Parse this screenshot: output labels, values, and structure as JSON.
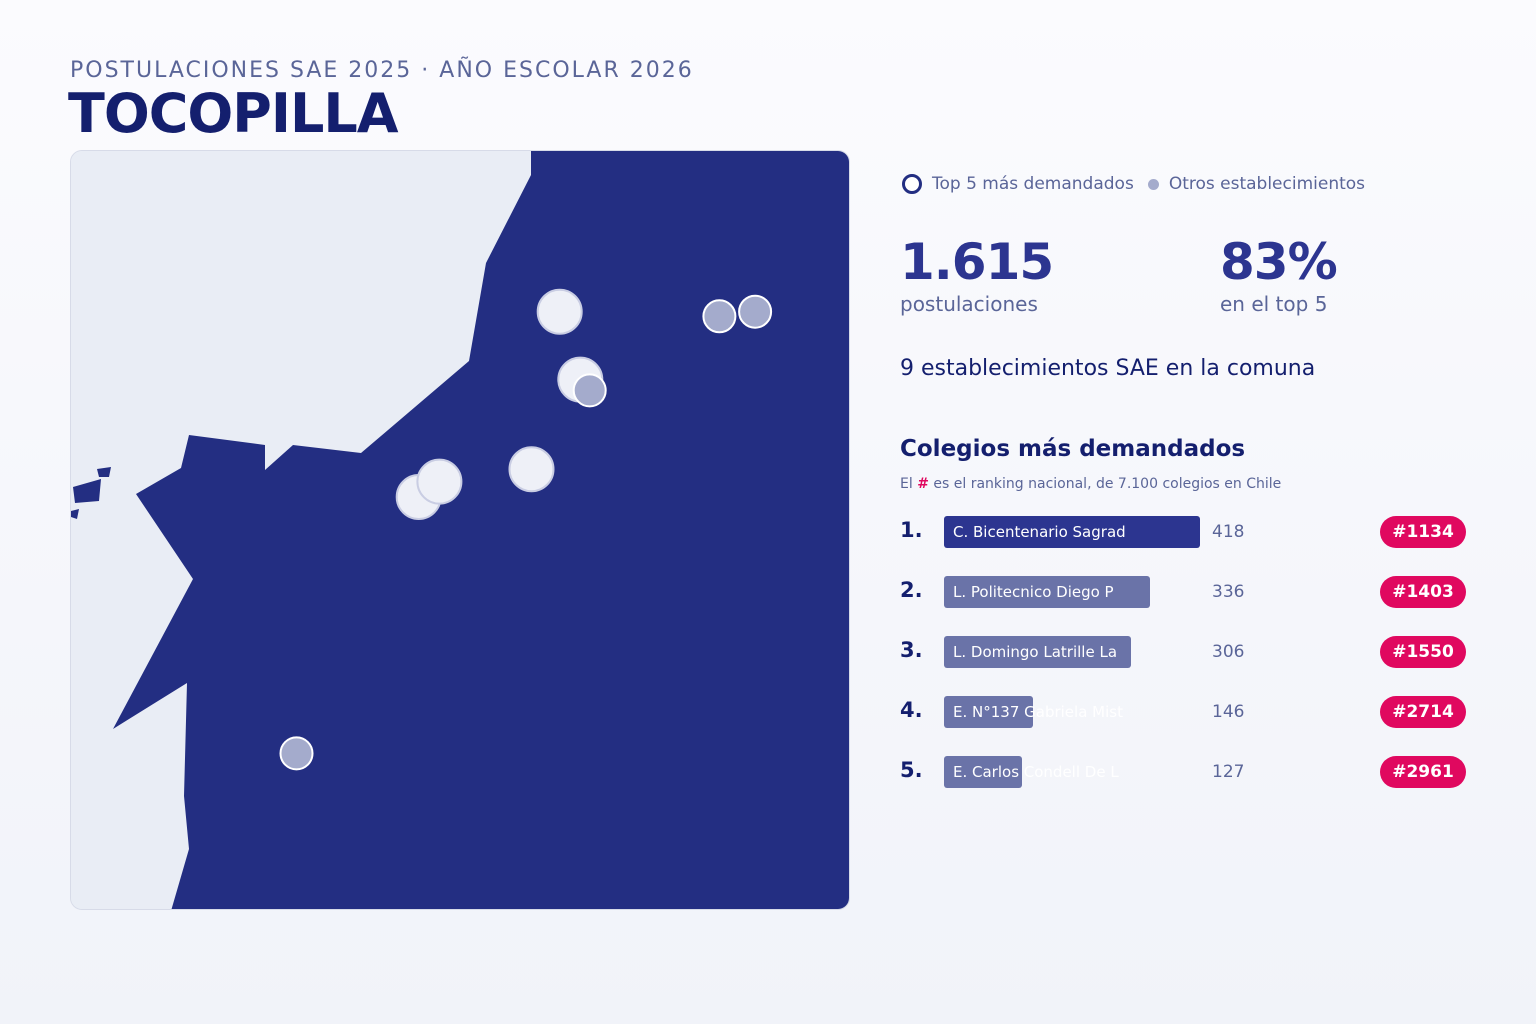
{
  "header": {
    "kicker": "POSTULACIONES SAE 2025 · AÑO ESCOLAR 2026",
    "title": "TOCOPILLA"
  },
  "colors": {
    "land": "#232e82",
    "sea": "#e9edf5",
    "accent": "#e0085f",
    "bar_first": "#2c3590",
    "bar_other": "#6a73a8",
    "marker_top5": "#eef0f7",
    "marker_other": "#a4abcc"
  },
  "map": {
    "markers": [
      {
        "type": "top5",
        "lon": -70.1915,
        "lat": -22.0822
      },
      {
        "type": "other",
        "lon": -70.183,
        "lat": -22.0825
      },
      {
        "type": "other",
        "lon": -70.1811,
        "lat": -22.0822
      },
      {
        "type": "top5",
        "lon": -70.1904,
        "lat": -22.0866
      },
      {
        "type": "other",
        "lon": -70.1899,
        "lat": -22.0873
      },
      {
        "type": "top5",
        "lon": -70.193,
        "lat": -22.0924
      },
      {
        "type": "top5",
        "lon": -70.199,
        "lat": -22.0942
      },
      {
        "type": "top5",
        "lon": -70.1979,
        "lat": -22.0932
      },
      {
        "type": "other",
        "lon": -70.2055,
        "lat": -22.1108
      }
    ]
  },
  "legend": {
    "top5_label": "Top 5 más demandados",
    "other_label": "Otros establecimientos"
  },
  "stats": {
    "applications_value": "1.615",
    "applications_label": "postulaciones",
    "top5_share_value": "83%",
    "top5_share_label": "en el top 5",
    "establishments_text": "9 establecimientos SAE en la comuna"
  },
  "ranking": {
    "title": "Colegios más demandados",
    "note_prefix": "El",
    "note_hash": "#",
    "note_suffix": "es el ranking nacional, de 7.100 colegios en Chile",
    "max_value": 418,
    "items": [
      {
        "pos": "1.",
        "name": "C. Bicentenario Sagrad",
        "value": 418,
        "rank": "#1134"
      },
      {
        "pos": "2.",
        "name": "L. Politecnico Diego P",
        "value": 336,
        "rank": "#1403"
      },
      {
        "pos": "3.",
        "name": "L. Domingo Latrille La",
        "value": 306,
        "rank": "#1550"
      },
      {
        "pos": "4.",
        "name": "E. N°137 Gabriela Mist",
        "value": 146,
        "rank": "#2714"
      },
      {
        "pos": "5.",
        "name": "E. Carlos Condell De L",
        "value": 127,
        "rank": "#2961"
      }
    ]
  }
}
